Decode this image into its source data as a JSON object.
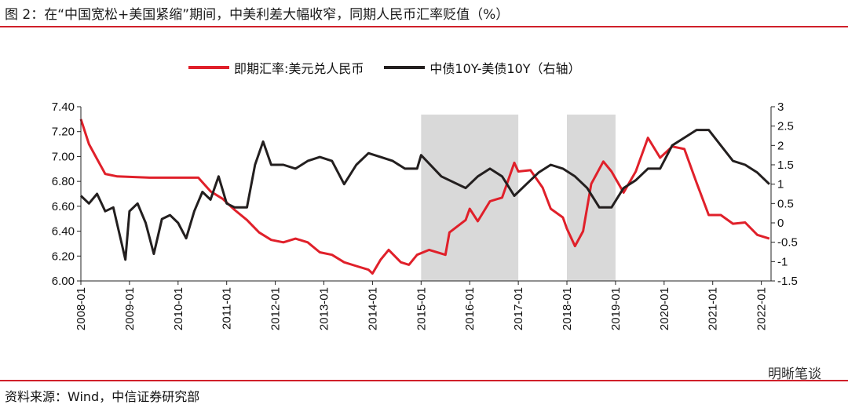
{
  "title": "图 2：在“中国宽松+美国紧缩”期间，中美利差大幅收窄，同期人民币汇率贬值（%）",
  "source": "资料来源：Wind，中信证券研究部",
  "watermark": "明晰笔谈",
  "chart_data": {
    "type": "line",
    "legend_position": "top",
    "grid": false,
    "shaded_periods": [
      [
        "2015-01",
        "2017-01"
      ],
      [
        "2018-01",
        "2019-01"
      ]
    ],
    "x_ticks": [
      "2008-01",
      "2009-01",
      "2010-01",
      "2011-01",
      "2012-01",
      "2013-01",
      "2014-01",
      "2015-01",
      "2016-01",
      "2017-01",
      "2018-01",
      "2019-01",
      "2020-01",
      "2021-01",
      "2022-01"
    ],
    "y_left": {
      "lim": [
        6.0,
        7.4
      ],
      "ticks": [
        "6.00",
        "6.20",
        "6.40",
        "6.60",
        "6.80",
        "7.00",
        "7.20",
        "7.40"
      ]
    },
    "y_right": {
      "lim": [
        -1.5,
        3.0
      ],
      "ticks": [
        "-1.5",
        "-1",
        "-0.5",
        "0",
        "0.5",
        "1",
        "1.5",
        "2",
        "2.5",
        "3"
      ]
    },
    "series": [
      {
        "name": "即期汇率:美元兑人民币",
        "axis": "left",
        "color": "#e0202a",
        "points": [
          [
            "2008-01",
            7.3
          ],
          [
            "2008-03",
            7.1
          ],
          [
            "2008-05",
            6.98
          ],
          [
            "2008-07",
            6.86
          ],
          [
            "2008-10",
            6.84
          ],
          [
            "2009-06",
            6.83
          ],
          [
            "2010-01",
            6.83
          ],
          [
            "2010-06",
            6.83
          ],
          [
            "2010-09",
            6.72
          ],
          [
            "2010-12",
            6.66
          ],
          [
            "2011-03",
            6.57
          ],
          [
            "2011-06",
            6.49
          ],
          [
            "2011-09",
            6.39
          ],
          [
            "2011-12",
            6.33
          ],
          [
            "2012-03",
            6.31
          ],
          [
            "2012-06",
            6.34
          ],
          [
            "2012-09",
            6.31
          ],
          [
            "2012-12",
            6.23
          ],
          [
            "2013-03",
            6.21
          ],
          [
            "2013-06",
            6.15
          ],
          [
            "2013-09",
            6.12
          ],
          [
            "2013-12",
            6.09
          ],
          [
            "2014-01",
            6.06
          ],
          [
            "2014-03",
            6.17
          ],
          [
            "2014-05",
            6.25
          ],
          [
            "2014-08",
            6.15
          ],
          [
            "2014-10",
            6.13
          ],
          [
            "2014-12",
            6.21
          ],
          [
            "2015-03",
            6.25
          ],
          [
            "2015-07",
            6.21
          ],
          [
            "2015-08",
            6.39
          ],
          [
            "2015-12",
            6.49
          ],
          [
            "2016-01",
            6.58
          ],
          [
            "2016-03",
            6.48
          ],
          [
            "2016-06",
            6.64
          ],
          [
            "2016-09",
            6.67
          ],
          [
            "2016-12",
            6.95
          ],
          [
            "2017-01",
            6.88
          ],
          [
            "2017-04",
            6.89
          ],
          [
            "2017-07",
            6.75
          ],
          [
            "2017-09",
            6.58
          ],
          [
            "2017-12",
            6.51
          ],
          [
            "2018-01",
            6.42
          ],
          [
            "2018-03",
            6.28
          ],
          [
            "2018-05",
            6.4
          ],
          [
            "2018-07",
            6.78
          ],
          [
            "2018-10",
            6.96
          ],
          [
            "2018-12",
            6.88
          ],
          [
            "2019-03",
            6.71
          ],
          [
            "2019-06",
            6.88
          ],
          [
            "2019-09",
            7.15
          ],
          [
            "2019-12",
            6.99
          ],
          [
            "2020-03",
            7.08
          ],
          [
            "2020-06",
            7.06
          ],
          [
            "2020-09",
            6.79
          ],
          [
            "2020-12",
            6.53
          ],
          [
            "2021-03",
            6.53
          ],
          [
            "2021-06",
            6.46
          ],
          [
            "2021-09",
            6.47
          ],
          [
            "2021-12",
            6.37
          ],
          [
            "2022-03",
            6.34
          ]
        ]
      },
      {
        "name": "中债10Y-美债10Y（右轴）",
        "axis": "right",
        "color": "#231f1f",
        "points": [
          [
            "2008-01",
            0.7
          ],
          [
            "2008-03",
            0.5
          ],
          [
            "2008-05",
            0.75
          ],
          [
            "2008-07",
            0.3
          ],
          [
            "2008-09",
            0.4
          ],
          [
            "2008-11",
            -0.5
          ],
          [
            "2008-12",
            -0.95
          ],
          [
            "2009-01",
            0.3
          ],
          [
            "2009-03",
            0.5
          ],
          [
            "2009-05",
            0.0
          ],
          [
            "2009-07",
            -0.8
          ],
          [
            "2009-09",
            0.1
          ],
          [
            "2009-11",
            0.2
          ],
          [
            "2010-01",
            0.0
          ],
          [
            "2010-03",
            -0.4
          ],
          [
            "2010-05",
            0.3
          ],
          [
            "2010-07",
            0.8
          ],
          [
            "2010-09",
            0.6
          ],
          [
            "2010-11",
            1.2
          ],
          [
            "2011-01",
            0.5
          ],
          [
            "2011-03",
            0.4
          ],
          [
            "2011-06",
            0.4
          ],
          [
            "2011-08",
            1.5
          ],
          [
            "2011-10",
            2.1
          ],
          [
            "2011-12",
            1.5
          ],
          [
            "2012-03",
            1.5
          ],
          [
            "2012-06",
            1.4
          ],
          [
            "2012-09",
            1.6
          ],
          [
            "2012-12",
            1.7
          ],
          [
            "2013-03",
            1.6
          ],
          [
            "2013-06",
            1.0
          ],
          [
            "2013-09",
            1.5
          ],
          [
            "2013-12",
            1.8
          ],
          [
            "2014-03",
            1.7
          ],
          [
            "2014-06",
            1.6
          ],
          [
            "2014-09",
            1.4
          ],
          [
            "2014-12",
            1.4
          ],
          [
            "2015-01",
            1.75
          ],
          [
            "2015-06",
            1.2
          ],
          [
            "2015-12",
            0.9
          ],
          [
            "2016-03",
            1.2
          ],
          [
            "2016-06",
            1.4
          ],
          [
            "2016-09",
            1.2
          ],
          [
            "2016-12",
            0.7
          ],
          [
            "2017-03",
            1.0
          ],
          [
            "2017-06",
            1.3
          ],
          [
            "2017-09",
            1.5
          ],
          [
            "2017-12",
            1.4
          ],
          [
            "2018-03",
            1.2
          ],
          [
            "2018-06",
            0.9
          ],
          [
            "2018-09",
            0.4
          ],
          [
            "2018-12",
            0.4
          ],
          [
            "2019-03",
            0.9
          ],
          [
            "2019-06",
            1.1
          ],
          [
            "2019-09",
            1.4
          ],
          [
            "2019-12",
            1.4
          ],
          [
            "2020-03",
            2.0
          ],
          [
            "2020-06",
            2.2
          ],
          [
            "2020-09",
            2.4
          ],
          [
            "2020-12",
            2.4
          ],
          [
            "2021-03",
            2.0
          ],
          [
            "2021-06",
            1.6
          ],
          [
            "2021-09",
            1.5
          ],
          [
            "2021-12",
            1.3
          ],
          [
            "2022-03",
            1.0
          ]
        ]
      }
    ]
  }
}
